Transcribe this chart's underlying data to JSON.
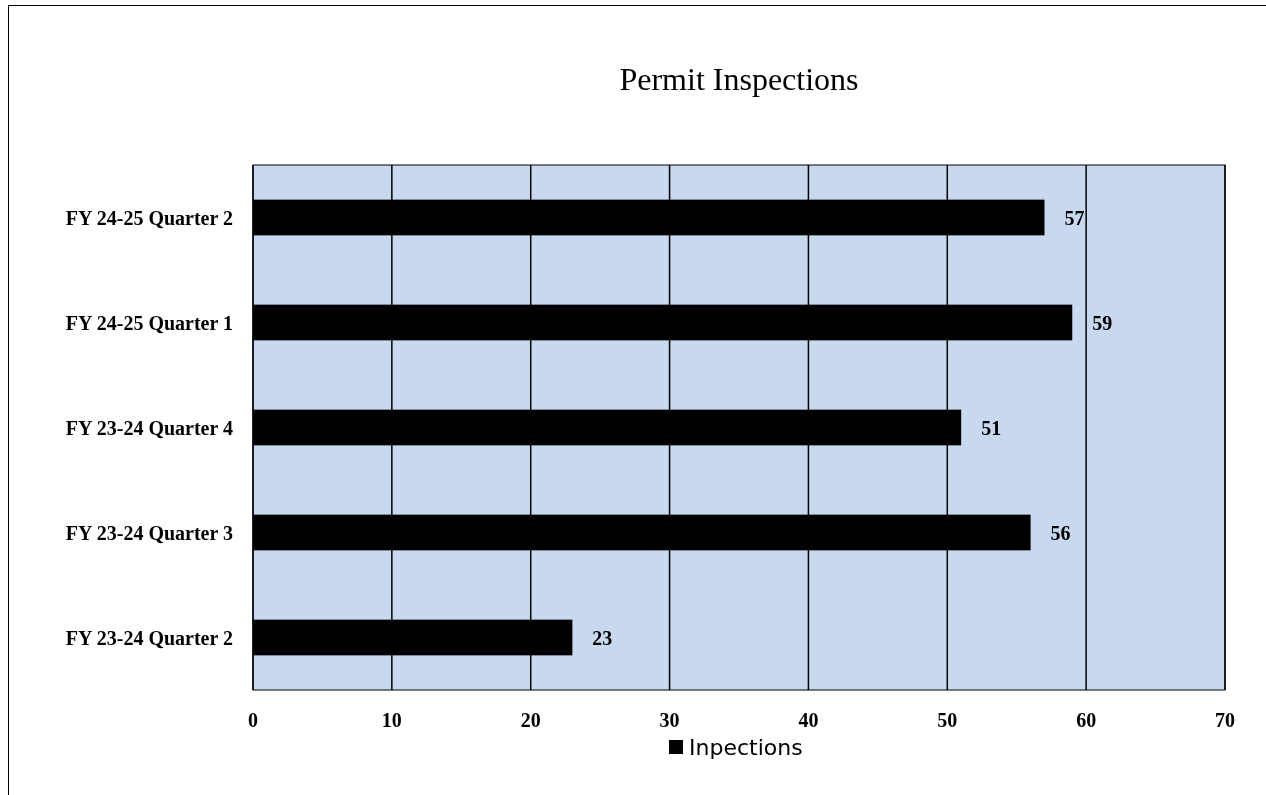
{
  "chart_data": {
    "type": "bar",
    "title": "Permit Inspections",
    "orientation": "horizontal",
    "categories": [
      "FY 24-25 Quarter 2",
      "FY 24-25 Quarter 1",
      "FY 23-24 Quarter 4",
      "FY 23-24 Quarter 3",
      "FY 23-24 Quarter 2"
    ],
    "series": [
      {
        "name": "Inpections",
        "color": "#000000",
        "values": [
          57,
          59,
          51,
          56,
          23
        ]
      }
    ],
    "xlim": [
      0,
      70
    ],
    "xticks": [
      0,
      10,
      20,
      30,
      40,
      50,
      60,
      70
    ],
    "grid": "x",
    "legend": "bottom",
    "data_labels": true
  }
}
